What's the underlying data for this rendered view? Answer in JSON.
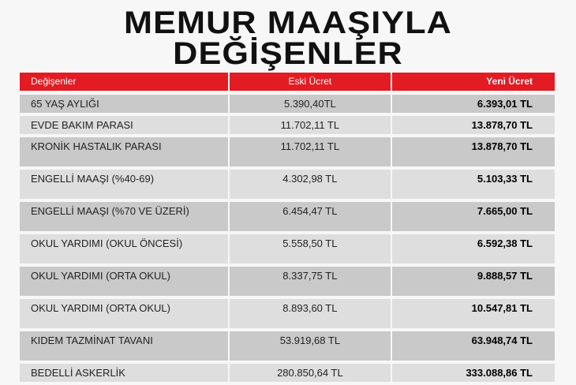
{
  "title": {
    "line1": "MEMUR MAAŞIYLA",
    "line2": "DEĞİŞENLER"
  },
  "colors": {
    "header": "#e31b23",
    "row_dark": "#c9c9c9",
    "row_light": "#dedede"
  },
  "table": {
    "headers": [
      "Değişenler",
      "Eski Ücret",
      "Yeni Ücret"
    ],
    "rows": [
      {
        "name": "65 YAŞ AYLIĞI",
        "old": "5.390,40TL",
        "new": "6.393,01 TL"
      },
      {
        "name": "EVDE BAKIM PARASI",
        "old": "11.702,11 TL",
        "new": "13.878,70 TL"
      },
      {
        "name": "KRONİK HASTALIK PARASI",
        "old": "11.702,11 TL",
        "new": "13.878,70 TL"
      },
      {
        "name": "ENGELLİ MAAŞI (%40-69)",
        "old": "4.302,98 TL",
        "new": "5.103,33 TL"
      },
      {
        "name": "ENGELLİ MAAŞI (%70 VE ÜZERİ)",
        "old": "6.454,47 TL",
        "new": "7.665,00 TL"
      },
      {
        "name": "OKUL YARDIMI (OKUL ÖNCESİ)",
        "old": "5.558,50 TL",
        "new": "6.592,38 TL"
      },
      {
        "name": "OKUL YARDIMI (ORTA OKUL)",
        "old": "8.337,75 TL",
        "new": "9.888,57 TL"
      },
      {
        "name": "OKUL YARDIMI (ORTA OKUL)",
        "old": "8.893,60 TL",
        "new": "10.547,81 TL"
      },
      {
        "name": "KIDEM TAZMİNAT TAVANI",
        "old": "53.919,68 TL",
        "new": "63.948,74 TL"
      },
      {
        "name": "BEDELLİ ASKERLİK",
        "old": "280.850,64 TL",
        "new": "333.088,86 TL"
      }
    ]
  }
}
